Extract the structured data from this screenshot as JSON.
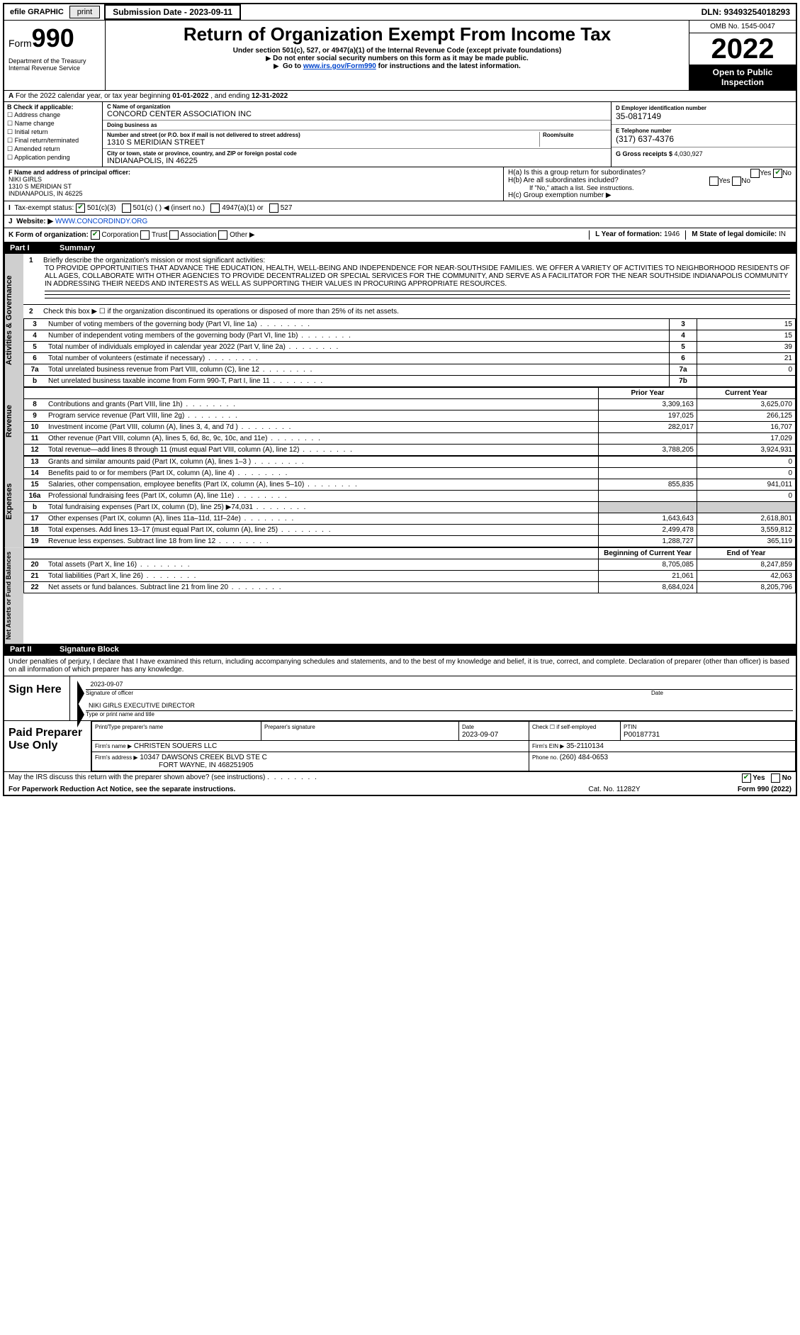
{
  "topstrip": {
    "efile": "efile GRAPHIC",
    "print": "print",
    "subdate": "Submission Date - 2023-09-11",
    "dln": "DLN: 93493254018293"
  },
  "header": {
    "form_prefix": "Form",
    "form_num": "990",
    "dept": "Department of the Treasury\nInternal Revenue Service",
    "title": "Return of Organization Exempt From Income Tax",
    "sub1": "Under section 501(c), 527, or 4947(a)(1) of the Internal Revenue Code (except private foundations)",
    "sub2": "Do not enter social security numbers on this form as it may be made public.",
    "sub3_pre": "Go to ",
    "sub3_link": "www.irs.gov/Form990",
    "sub3_post": " for instructions and the latest information.",
    "omb": "OMB No. 1545-0047",
    "year": "2022",
    "inspect": "Open to Public Inspection"
  },
  "A": {
    "text": "For the 2022 calendar year, or tax year beginning ",
    "begin": "01-01-2022",
    "mid": " , and ending ",
    "end": "12-31-2022"
  },
  "B": {
    "hdr": "B Check if applicable:",
    "items": [
      "Address change",
      "Name change",
      "Initial return",
      "Final return/terminated",
      "Amended return",
      "Application pending"
    ]
  },
  "C": {
    "name_lbl": "C Name of organization",
    "name": "CONCORD CENTER ASSOCIATION INC",
    "dba_lbl": "Doing business as",
    "dba": "",
    "addr_lbl": "Number and street (or P.O. box if mail is not delivered to street address)",
    "addr": "1310 S MERIDIAN STREET",
    "room_lbl": "Room/suite",
    "room": "",
    "city_lbl": "City or town, state or province, country, and ZIP or foreign postal code",
    "city": "INDIANAPOLIS, IN  46225"
  },
  "D": {
    "lbl": "D Employer identification number",
    "val": "35-0817149"
  },
  "E": {
    "lbl": "E Telephone number",
    "val": "(317) 637-4376"
  },
  "G": {
    "lbl": "G Gross receipts $ ",
    "val": "4,030,927"
  },
  "F": {
    "lbl": "F  Name and address of principal officer:",
    "name": "NIKI GIRLS",
    "addr1": "1310 S MERIDIAN ST",
    "addr2": "INDIANAPOLIS, IN  46225"
  },
  "H": {
    "a": "H(a)  Is this a group return for subordinates?",
    "b": "H(b)  Are all subordinates included?",
    "b_note": "If \"No,\" attach a list. See instructions.",
    "c": "H(c)  Group exemption number ▶",
    "yes": "Yes",
    "no": "No"
  },
  "I": {
    "lbl": "Tax-exempt status:",
    "opts": [
      "501(c)(3)",
      "501(c) (    ) ◀ (insert no.)",
      "4947(a)(1) or",
      "527"
    ]
  },
  "J": {
    "lbl": "Website: ▶",
    "val": " WWW.CONCORDINDY.ORG"
  },
  "K": {
    "lbl": "K Form of organization:",
    "opts": [
      "Corporation",
      "Trust",
      "Association",
      "Other ▶"
    ]
  },
  "L": {
    "lbl": "L Year of formation: ",
    "val": "1946"
  },
  "M": {
    "lbl": "M State of legal domicile: ",
    "val": "IN"
  },
  "partI": {
    "hdr_pt": "Part I",
    "hdr_txt": "Summary",
    "line1_lbl": "Briefly describe the organization's mission or most significant activities:",
    "line1_val": "TO PROVIDE OPPORTUNITIES THAT ADVANCE THE EDUCATION, HEALTH, WELL-BEING AND INDEPENDENCE FOR NEAR-SOUTHSIDE FAMILIES. WE OFFER A VARIETY OF ACTIVITIES TO NEIGHBORHOOD RESIDENTS OF ALL AGES, COLLABORATE WITH OTHER AGENCIES TO PROVIDE DECENTRALIZED OR SPECIAL SERVICES FOR THE COMMUNITY, AND SERVE AS A FACILITATOR FOR THE NEAR SOUTHSIDE INDIANAPOLIS COMMUNITY IN ADDRESSING THEIR NEEDS AND INTERESTS AS WELL AS SUPPORTING THEIR VALUES IN PROCURING APPROPRIATE RESOURCES.",
    "line2": "Check this box ▶ ☐ if the organization discontinued its operations or disposed of more than 25% of its net assets.",
    "sidebar_gov": "Activities & Governance",
    "sidebar_rev": "Revenue",
    "sidebar_exp": "Expenses",
    "sidebar_net": "Net Assets or Fund Balances",
    "prior_hdr": "Prior Year",
    "curr_hdr": "Current Year",
    "begin_hdr": "Beginning of Current Year",
    "end_hdr": "End of Year",
    "gov_lines": [
      {
        "n": "3",
        "d": "Number of voting members of the governing body (Part VI, line 1a)",
        "box": "3",
        "v": "15"
      },
      {
        "n": "4",
        "d": "Number of independent voting members of the governing body (Part VI, line 1b)",
        "box": "4",
        "v": "15"
      },
      {
        "n": "5",
        "d": "Total number of individuals employed in calendar year 2022 (Part V, line 2a)",
        "box": "5",
        "v": "39"
      },
      {
        "n": "6",
        "d": "Total number of volunteers (estimate if necessary)",
        "box": "6",
        "v": "21"
      },
      {
        "n": "7a",
        "d": "Total unrelated business revenue from Part VIII, column (C), line 12",
        "box": "7a",
        "v": "0"
      },
      {
        "n": "b",
        "d": "Net unrelated business taxable income from Form 990-T, Part I, line 11",
        "box": "7b",
        "v": ""
      }
    ],
    "rev_lines": [
      {
        "n": "8",
        "d": "Contributions and grants (Part VIII, line 1h)",
        "p": "3,309,163",
        "c": "3,625,070"
      },
      {
        "n": "9",
        "d": "Program service revenue (Part VIII, line 2g)",
        "p": "197,025",
        "c": "266,125"
      },
      {
        "n": "10",
        "d": "Investment income (Part VIII, column (A), lines 3, 4, and 7d )",
        "p": "282,017",
        "c": "16,707"
      },
      {
        "n": "11",
        "d": "Other revenue (Part VIII, column (A), lines 5, 6d, 8c, 9c, 10c, and 11e)",
        "p": "",
        "c": "17,029"
      },
      {
        "n": "12",
        "d": "Total revenue—add lines 8 through 11 (must equal Part VIII, column (A), line 12)",
        "p": "3,788,205",
        "c": "3,924,931"
      }
    ],
    "exp_lines": [
      {
        "n": "13",
        "d": "Grants and similar amounts paid (Part IX, column (A), lines 1–3 )",
        "p": "",
        "c": "0"
      },
      {
        "n": "14",
        "d": "Benefits paid to or for members (Part IX, column (A), line 4)",
        "p": "",
        "c": "0"
      },
      {
        "n": "15",
        "d": "Salaries, other compensation, employee benefits (Part IX, column (A), lines 5–10)",
        "p": "855,835",
        "c": "941,011"
      },
      {
        "n": "16a",
        "d": "Professional fundraising fees (Part IX, column (A), line 11e)",
        "p": "",
        "c": "0"
      },
      {
        "n": "b",
        "d": "Total fundraising expenses (Part IX, column (D), line 25) ▶74,031",
        "p": "grey",
        "c": "grey"
      },
      {
        "n": "17",
        "d": "Other expenses (Part IX, column (A), lines 11a–11d, 11f–24e)",
        "p": "1,643,643",
        "c": "2,618,801"
      },
      {
        "n": "18",
        "d": "Total expenses. Add lines 13–17 (must equal Part IX, column (A), line 25)",
        "p": "2,499,478",
        "c": "3,559,812"
      },
      {
        "n": "19",
        "d": "Revenue less expenses. Subtract line 18 from line 12",
        "p": "1,288,727",
        "c": "365,119"
      }
    ],
    "net_lines": [
      {
        "n": "20",
        "d": "Total assets (Part X, line 16)",
        "p": "8,705,085",
        "c": "8,247,859"
      },
      {
        "n": "21",
        "d": "Total liabilities (Part X, line 26)",
        "p": "21,061",
        "c": "42,063"
      },
      {
        "n": "22",
        "d": "Net assets or fund balances. Subtract line 21 from line 20",
        "p": "8,684,024",
        "c": "8,205,796"
      }
    ]
  },
  "partII": {
    "hdr_pt": "Part II",
    "hdr_txt": "Signature Block",
    "penalties": "Under penalties of perjury, I declare that I have examined this return, including accompanying schedules and statements, and to the best of my knowledge and belief, it is true, correct, and complete. Declaration of preparer (other than officer) is based on all information of which preparer has any knowledge.",
    "sign_here": "Sign Here",
    "sig_officer_lbl": "Signature of officer",
    "sig_date": "2023-09-07",
    "sig_date_lbl": "Date",
    "sig_name": "NIKI GIRLS EXECUTIVE DIRECTOR",
    "sig_name_lbl": "Type or print name and title",
    "paid_lbl": "Paid Preparer Use Only",
    "prep_name_lbl": "Print/Type preparer's name",
    "prep_name": "",
    "prep_sig_lbl": "Preparer's signature",
    "prep_date_lbl": "Date",
    "prep_date": "2023-09-07",
    "prep_self_lbl": "Check ☐ if self-employed",
    "ptin_lbl": "PTIN",
    "ptin": "P00187731",
    "firm_name_lbl": "Firm's name      ▶",
    "firm_name": "CHRISTEN SOUERS LLC",
    "firm_ein_lbl": "Firm's EIN ▶",
    "firm_ein": "35-2110134",
    "firm_addr_lbl": "Firm's address ▶",
    "firm_addr": "10347 DAWSONS CREEK BLVD STE C",
    "firm_city": "FORT WAYNE, IN  468251905",
    "firm_phone_lbl": "Phone no. ",
    "firm_phone": "(260) 484-0653"
  },
  "footer": {
    "discuss": "May the IRS discuss this return with the preparer shown above? (see instructions)",
    "yes": "Yes",
    "no": "No",
    "paperwork": "For Paperwork Reduction Act Notice, see the separate instructions.",
    "cat": "Cat. No. 11282Y",
    "form": "Form 990 (2022)"
  }
}
